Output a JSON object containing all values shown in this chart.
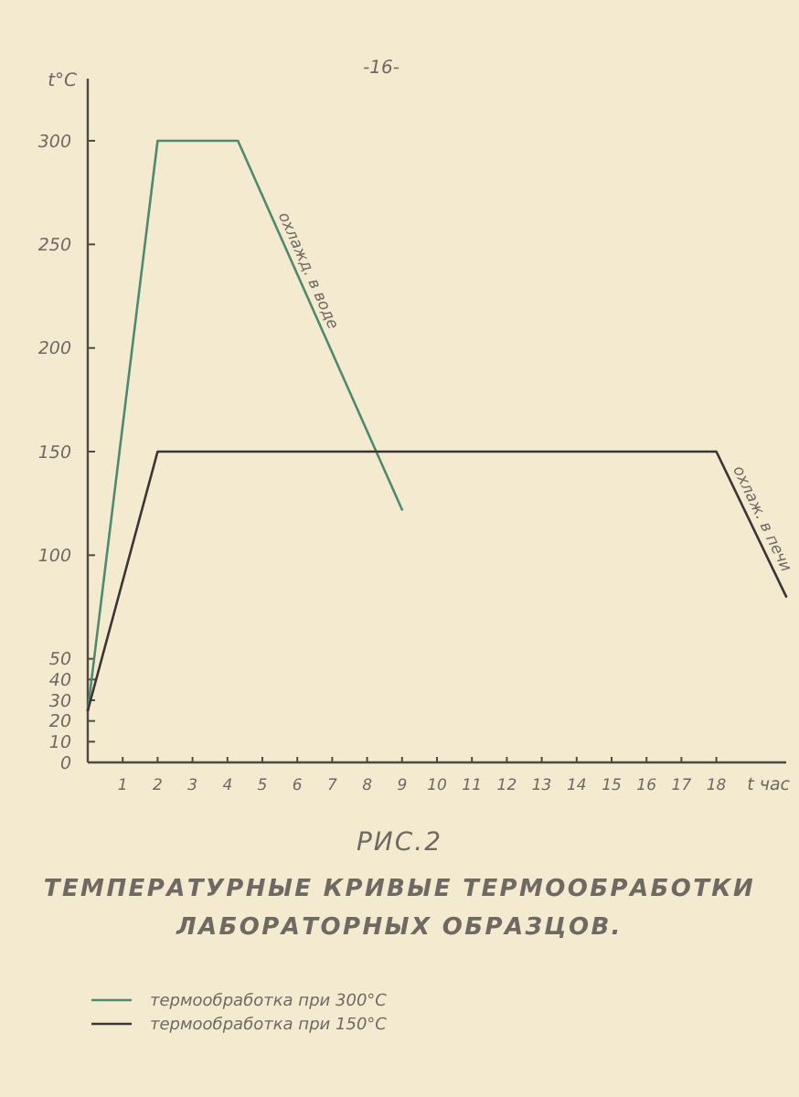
{
  "chart_data": {
    "type": "line",
    "title": "РИС.2",
    "subtitle": "ТЕМПЕРАТУРНЫЕ КРИВЫЕ ТЕРМООБРАБОТКИ ЛАБОРАТОРНЫХ ОБРАЗЦОВ.",
    "xlabel": "t час",
    "ylabel": "t°C",
    "annotations": [
      "-16-",
      {
        "text": "охлажд. в воде",
        "x": 6,
        "y": 235
      },
      {
        "text": "охлаж. в печи",
        "x": 19,
        "y": 115
      }
    ],
    "series": [
      {
        "name": "термообработка при 300°C",
        "color": "#4f8a6e",
        "x": [
          0,
          2,
          4.3,
          9
        ],
        "values": [
          25,
          300,
          300,
          122
        ]
      },
      {
        "name": "термообработка при 150°C",
        "color": "#3c3535",
        "x": [
          0,
          2,
          18,
          20
        ],
        "values": [
          25,
          150,
          150,
          80
        ]
      }
    ],
    "xlim": [
      0,
      20
    ],
    "ylim": [
      0,
      330
    ],
    "xticks": [
      1,
      2,
      3,
      4,
      5,
      6,
      7,
      8,
      9,
      10,
      11,
      12,
      13,
      14,
      15,
      16,
      17,
      18
    ],
    "yticks": [
      0,
      10,
      20,
      30,
      40,
      50,
      100,
      150,
      200,
      250,
      300
    ],
    "grid": false,
    "legend": "bottom",
    "marker": "none",
    "line_style": "solid"
  }
}
